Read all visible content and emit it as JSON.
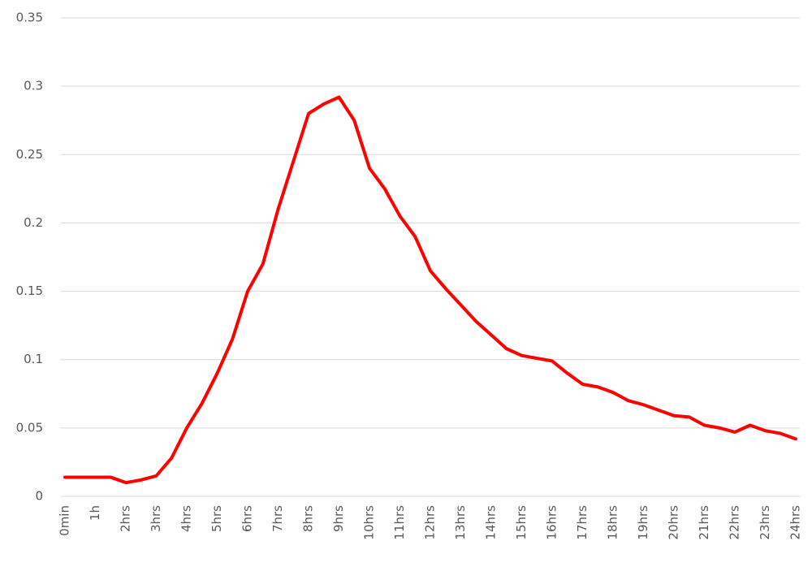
{
  "chart_data": {
    "type": "line",
    "color": "#ff0000",
    "grid": true,
    "categories": [
      "0min",
      null,
      "1h",
      null,
      "2hrs",
      null,
      "3hrs",
      null,
      "4hrs",
      null,
      "5hrs",
      null,
      "6hrs",
      null,
      "7hrs",
      null,
      "8hrs",
      null,
      "9hrs",
      null,
      "10hrs",
      null,
      "11hrs",
      null,
      "12hrs",
      null,
      "13hrs",
      null,
      "14hrs",
      null,
      "15hrs",
      null,
      "16hrs",
      null,
      "17hrs",
      null,
      "18hrs",
      null,
      "19hrs",
      null,
      "20hrs",
      null,
      "21hrs",
      null,
      "22hrs",
      null,
      "23hrs",
      null,
      "24hrs"
    ],
    "values": [
      0.014,
      0.014,
      0.014,
      0.014,
      0.01,
      0.012,
      0.015,
      0.028,
      0.05,
      0.068,
      0.09,
      0.115,
      0.15,
      0.17,
      0.21,
      0.245,
      0.28,
      0.287,
      0.292,
      0.275,
      0.24,
      0.225,
      0.205,
      0.19,
      0.165,
      0.152,
      0.14,
      0.128,
      0.118,
      0.108,
      0.103,
      0.101,
      0.099,
      0.09,
      0.082,
      0.08,
      0.076,
      0.07,
      0.067,
      0.063,
      0.059,
      0.058,
      0.052,
      0.05,
      0.047,
      0.052,
      0.048,
      0.046,
      0.042
    ],
    "ylim": [
      0,
      0.35
    ],
    "yticks": [
      0,
      0.05,
      0.1,
      0.15,
      0.2,
      0.25,
      0.3,
      0.35
    ]
  }
}
